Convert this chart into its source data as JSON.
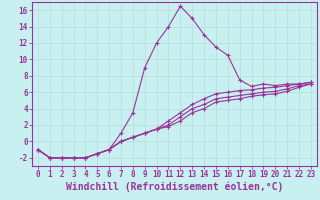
{
  "title": "",
  "xlabel": "Windchill (Refroidissement éolien,°C)",
  "ylabel": "",
  "bg_color": "#c8f0f0",
  "line_color": "#993399",
  "grid_color": "#b8dede",
  "xlim": [
    -0.5,
    23.5
  ],
  "ylim": [
    -3,
    17
  ],
  "xticks": [
    0,
    1,
    2,
    3,
    4,
    5,
    6,
    7,
    8,
    9,
    10,
    11,
    12,
    13,
    14,
    15,
    16,
    17,
    18,
    19,
    20,
    21,
    22,
    23
  ],
  "yticks": [
    -2,
    0,
    2,
    4,
    6,
    8,
    10,
    12,
    14,
    16
  ],
  "lines": [
    {
      "x": [
        0,
        1,
        2,
        3,
        4,
        5,
        6,
        7,
        8,
        9,
        10,
        11,
        12,
        13,
        14,
        15,
        16,
        17,
        18,
        19,
        20,
        21,
        22,
        23
      ],
      "y": [
        -1,
        -2,
        -2,
        -2,
        -2,
        -1.5,
        -1,
        1,
        3.5,
        9,
        12,
        14,
        16.5,
        15,
        13,
        11.5,
        10.5,
        7.5,
        6.7,
        7,
        6.8,
        7,
        7,
        7.2
      ]
    },
    {
      "x": [
        0,
        1,
        2,
        3,
        4,
        5,
        6,
        7,
        8,
        9,
        10,
        11,
        12,
        13,
        14,
        15,
        16,
        17,
        18,
        19,
        20,
        21,
        22,
        23
      ],
      "y": [
        -1,
        -2,
        -2,
        -2,
        -2,
        -1.5,
        -1,
        0,
        0.5,
        1,
        1.5,
        2.5,
        3.5,
        4.5,
        5.2,
        5.8,
        6,
        6.2,
        6.3,
        6.5,
        6.6,
        6.8,
        7,
        7.2
      ]
    },
    {
      "x": [
        0,
        1,
        2,
        3,
        4,
        5,
        6,
        7,
        8,
        9,
        10,
        11,
        12,
        13,
        14,
        15,
        16,
        17,
        18,
        19,
        20,
        21,
        22,
        23
      ],
      "y": [
        -1,
        -2,
        -2,
        -2,
        -2,
        -1.5,
        -1,
        0,
        0.5,
        1,
        1.5,
        2,
        3,
        4,
        4.5,
        5.2,
        5.4,
        5.6,
        5.8,
        6,
        6.1,
        6.4,
        6.8,
        7
      ]
    },
    {
      "x": [
        0,
        1,
        2,
        3,
        4,
        5,
        6,
        7,
        8,
        9,
        10,
        11,
        12,
        13,
        14,
        15,
        16,
        17,
        18,
        19,
        20,
        21,
        22,
        23
      ],
      "y": [
        -1,
        -2,
        -2,
        -2,
        -2,
        -1.5,
        -1,
        0,
        0.5,
        1,
        1.5,
        1.8,
        2.5,
        3.5,
        4,
        4.8,
        5,
        5.2,
        5.5,
        5.7,
        5.8,
        6.1,
        6.6,
        7
      ]
    }
  ],
  "xlabel_fontsize": 7,
  "tick_fontsize": 5.5
}
